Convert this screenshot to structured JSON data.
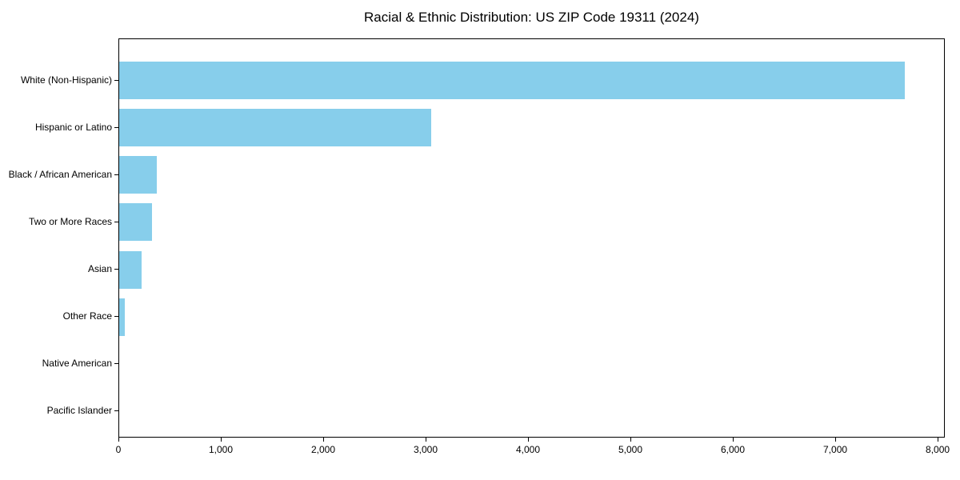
{
  "chart_data": {
    "type": "bar",
    "orientation": "horizontal",
    "title": "Racial & Ethnic Distribution: US ZIP Code 19311 (2024)",
    "categories": [
      "White (Non-Hispanic)",
      "Hispanic or Latino",
      "Black / African American",
      "Two or More Races",
      "Asian",
      "Other Race",
      "Native American",
      "Pacific Islander"
    ],
    "values": [
      7670,
      3050,
      370,
      320,
      220,
      55,
      0,
      0
    ],
    "xlabel": "",
    "ylabel": "",
    "xlim": [
      0,
      8070
    ],
    "xticks": [
      0,
      1000,
      2000,
      3000,
      4000,
      5000,
      6000,
      7000,
      8000
    ],
    "xtick_labels": [
      "0",
      "1,000",
      "2,000",
      "3,000",
      "4,000",
      "5,000",
      "6,000",
      "7,000",
      "8,000"
    ],
    "bar_color": "#87CEEB",
    "frame_color": "#000000",
    "background": "#ffffff",
    "grid": false,
    "legend": null
  }
}
